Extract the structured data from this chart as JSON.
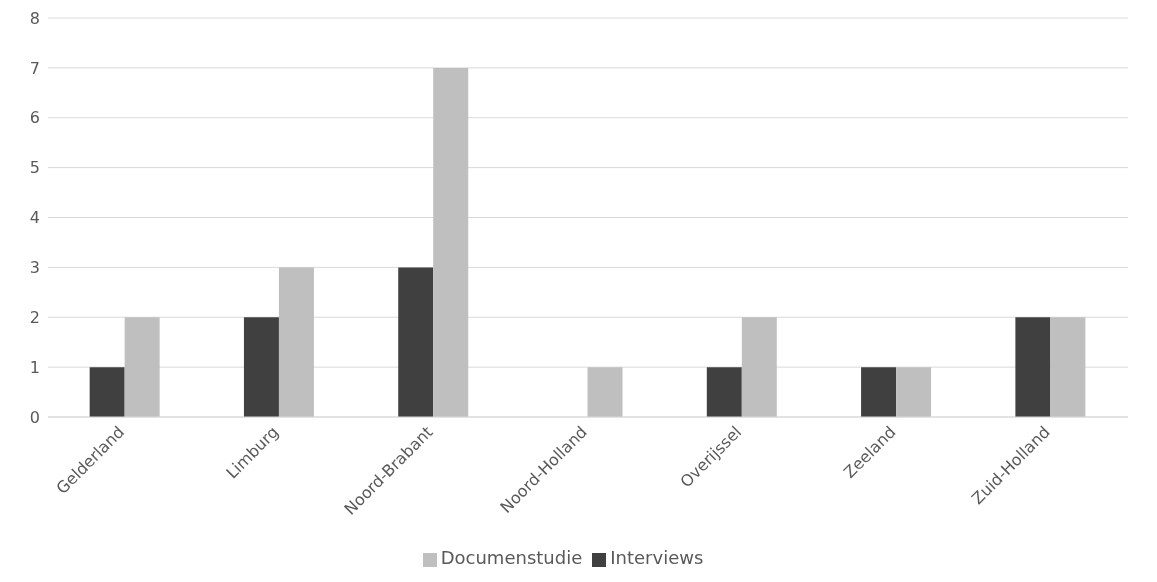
{
  "chart_data": {
    "type": "bar",
    "categories": [
      "Gelderland",
      "Limburg",
      "Noord-Brabant",
      "Noord-Holland",
      "Overijssel",
      "Zeeland",
      "Zuid-Holland"
    ],
    "series": [
      {
        "name": "Interviews",
        "color": "#404040",
        "values": [
          1,
          2,
          3,
          0,
          1,
          1,
          2
        ]
      },
      {
        "name": "Documenstudie",
        "color": "#bfbfbf",
        "values": [
          2,
          3,
          7,
          1,
          2,
          1,
          2
        ]
      }
    ],
    "ylim": [
      0,
      8
    ],
    "yticks": [
      0,
      1,
      2,
      3,
      4,
      5,
      6,
      7,
      8
    ],
    "grid": "y",
    "legend": "bottom"
  }
}
